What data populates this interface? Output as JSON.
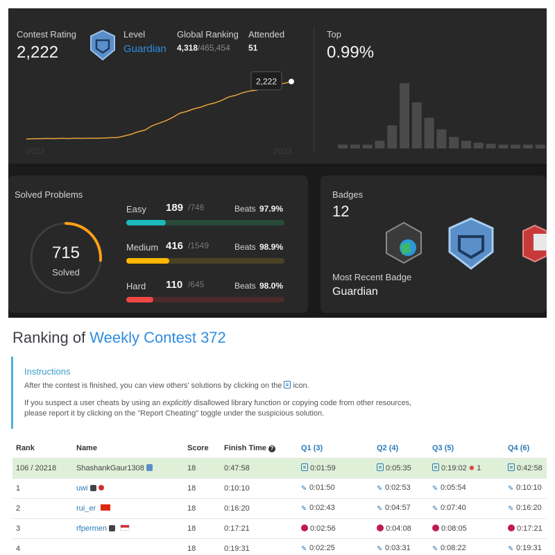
{
  "profile": {
    "contest_rating_label": "Contest Rating",
    "contest_rating": "2,222",
    "level_label": "Level",
    "level": "Guardian",
    "global_ranking_label": "Global Ranking",
    "global_rank": "4,318",
    "global_total": "/465,454",
    "attended_label": "Attended",
    "attended": "51",
    "top_label": "Top",
    "top_value": "0.99%",
    "chart_tooltip": "2,222",
    "year_start": "2022",
    "year_end": "2023"
  },
  "chart_data": [
    {
      "type": "line",
      "title": "",
      "x": [
        0,
        1,
        2,
        3,
        4,
        5,
        6,
        7,
        8,
        9,
        10,
        11,
        12,
        13,
        14,
        15,
        16,
        17,
        18,
        19,
        20,
        21,
        22,
        23,
        24,
        25,
        26,
        27,
        28,
        29,
        30,
        31,
        32,
        33,
        34,
        35,
        36,
        37,
        38
      ],
      "values": [
        1545,
        1548,
        1550,
        1552,
        1550,
        1553,
        1551,
        1554,
        1552,
        1555,
        1553,
        1556,
        1560,
        1562,
        1580,
        1600,
        1630,
        1650,
        1700,
        1730,
        1760,
        1800,
        1850,
        1870,
        1900,
        1920,
        1950,
        1970,
        2000,
        2040,
        2060,
        2090,
        2110,
        2120,
        2150,
        2160,
        2190,
        2200,
        2222
      ],
      "xlabels": [
        "2022",
        "2023"
      ],
      "tooltip": "2,222"
    },
    {
      "type": "bar",
      "title": "",
      "values": [
        1,
        1,
        1,
        2,
        6,
        17,
        12,
        8,
        5,
        3,
        2,
        1.5,
        1.2,
        1,
        1,
        1,
        1,
        1
      ],
      "highlight_index": 17
    }
  ],
  "solved": {
    "title": "Solved Problems",
    "total": "715",
    "total_label": "Solved",
    "ring_fraction": 0.26,
    "rows": [
      {
        "label": "Easy",
        "count": "189",
        "total": "/746",
        "beats_label": "Beats",
        "beats": "97.9%",
        "fraction": 0.25,
        "color": "#1cbaba",
        "track": "#2a4a3a"
      },
      {
        "label": "Medium",
        "count": "416",
        "total": "/1549",
        "beats_label": "Beats",
        "beats": "98.9%",
        "fraction": 0.27,
        "color": "#ffb700",
        "track": "#4a4224"
      },
      {
        "label": "Hard",
        "count": "110",
        "total": "/645",
        "beats_label": "Beats",
        "beats": "98.0%",
        "fraction": 0.17,
        "color": "#ef4743",
        "track": "#4a2a2a"
      }
    ]
  },
  "badges": {
    "title": "Badges",
    "count": "12",
    "recent_label": "Most Recent Badge",
    "recent": "Guardian"
  },
  "ranking": {
    "title_prefix": "Ranking of ",
    "title_link": "Weekly Contest 372",
    "instructions_title": "Instructions",
    "line1_a": "After the contest is finished, you can view others' solutions by clicking on the",
    "line1_b": "icon.",
    "line2_a": "If you suspect a user cheats by using an ",
    "line2_em": "explicitly",
    "line2_b": " disallowed library function or copying code from other resources,",
    "line3": "please report it by clicking on the \"Report Cheating\" toggle under the suspicious solution.",
    "headers": [
      "Rank",
      "Name",
      "Score",
      "Finish Time",
      "Q1 (3)",
      "Q2 (4)",
      "Q3 (5)",
      "Q4 (6)"
    ],
    "rows": [
      {
        "rank": "106 / 20218",
        "name": "ShashankGaur1308",
        "score": "18",
        "finish": "0:47:58",
        "q": [
          "0:01:59",
          "0:05:35",
          "0:19:02",
          "0:42:58"
        ],
        "q3_extra": "1"
      },
      {
        "rank": "1",
        "name": "uwi",
        "score": "18",
        "finish": "0:10:10",
        "q": [
          "0:01:50",
          "0:02:53",
          "0:05:54",
          "0:10:10"
        ],
        "q3_extra": ""
      },
      {
        "rank": "2",
        "name": "rui_er",
        "score": "18",
        "finish": "0:16:20",
        "q": [
          "0:02:43",
          "0:04:57",
          "0:07:40",
          "0:16:20"
        ],
        "q3_extra": ""
      },
      {
        "rank": "3",
        "name": "rfpermen",
        "score": "18",
        "finish": "0:17:21",
        "q": [
          "0:02:56",
          "0:04:08",
          "0:08:05",
          "0:17:21"
        ],
        "q3_extra": ""
      },
      {
        "rank": "4",
        "name": "",
        "score": "18",
        "finish": "0:19:31",
        "q": [
          "0:02:25",
          "0:03:31",
          "0:08:22",
          "0:19:31"
        ],
        "q3_extra": ""
      }
    ]
  }
}
